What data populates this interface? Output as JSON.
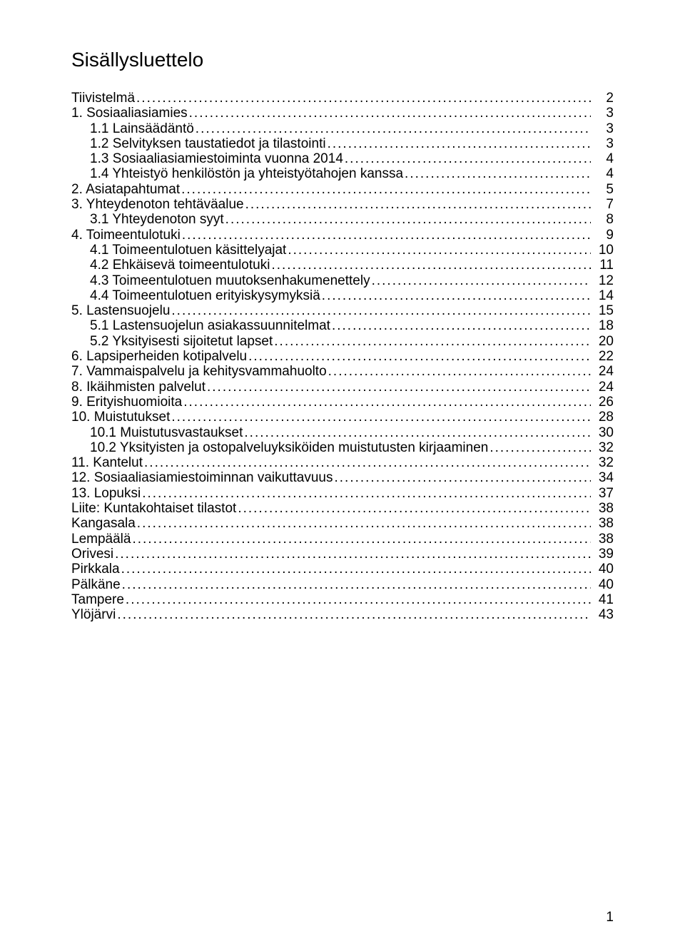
{
  "title": "Sisällysluettelo",
  "page_number": "1",
  "toc": [
    {
      "label": "Tiivistelmä",
      "page": "2",
      "indent": 0
    },
    {
      "label": "1.   Sosiaaliasiamies",
      "page": "3",
      "indent": 0
    },
    {
      "label": "1.1 Lainsäädäntö",
      "page": "3",
      "indent": 1
    },
    {
      "label": "1.2 Selvityksen taustatiedot ja tilastointi",
      "page": "3",
      "indent": 1
    },
    {
      "label": "1.3 Sosiaaliasiamiestoiminta vuonna 2014",
      "page": "4",
      "indent": 1
    },
    {
      "label": "1.4 Yhteistyö henkilöstön ja yhteistyötahojen kanssa",
      "page": "4",
      "indent": 1
    },
    {
      "label": "2.   Asiatapahtumat",
      "page": "5",
      "indent": 0
    },
    {
      "label": "3.   Yhteydenoton tehtäväalue",
      "page": "7",
      "indent": 0
    },
    {
      "label": "3.1 Yhteydenoton syyt",
      "page": "8",
      "indent": 1
    },
    {
      "label": "4.   Toimeentulotuki",
      "page": "9",
      "indent": 0
    },
    {
      "label": "4.1 Toimeentulotuen käsittelyajat",
      "page": "10",
      "indent": 1
    },
    {
      "label": "4.2 Ehkäisevä toimeentulotuki",
      "page": "11",
      "indent": 1
    },
    {
      "label": "4.3 Toimeentulotuen muutoksenhakumenettely",
      "page": "12",
      "indent": 1
    },
    {
      "label": "4.4 Toimeentulotuen erityiskysymyksiä",
      "page": "14",
      "indent": 1
    },
    {
      "label": "5.   Lastensuojelu",
      "page": "15",
      "indent": 0
    },
    {
      "label": "5.1 Lastensuojelun asiakassuunnitelmat",
      "page": "18",
      "indent": 1
    },
    {
      "label": "5.2 Yksityisesti sijoitetut lapset",
      "page": "20",
      "indent": 1
    },
    {
      "label": "6.   Lapsiperheiden kotipalvelu",
      "page": "22",
      "indent": 0
    },
    {
      "label": "7.   Vammaispalvelu ja kehitysvammahuolto",
      "page": "24",
      "indent": 0
    },
    {
      "label": "8.   Ikäihmisten palvelut",
      "page": "24",
      "indent": 0
    },
    {
      "label": "9.   Erityishuomioita",
      "page": "26",
      "indent": 0
    },
    {
      "label": "10.  Muistutukset",
      "page": "28",
      "indent": 0
    },
    {
      "label": "10.1 Muistutusvastaukset",
      "page": "30",
      "indent": 1
    },
    {
      "label": "10.2 Yksityisten ja ostopalveluyksiköiden muistutusten kirjaaminen",
      "page": "32",
      "indent": 1
    },
    {
      "label": "11.  Kantelut",
      "page": "32",
      "indent": 0
    },
    {
      "label": "12.  Sosiaaliasiamiestoiminnan vaikuttavuus",
      "page": "34",
      "indent": 0
    },
    {
      "label": "13.  Lopuksi",
      "page": "37",
      "indent": 0
    },
    {
      "label": "Liite: Kuntakohtaiset tilastot",
      "page": "38",
      "indent": 0
    },
    {
      "label": "Kangasala",
      "page": "38",
      "indent": 0
    },
    {
      "label": "Lempäälä",
      "page": "38",
      "indent": 0
    },
    {
      "label": "Orivesi",
      "page": "39",
      "indent": 0
    },
    {
      "label": "Pirkkala",
      "page": "40",
      "indent": 0
    },
    {
      "label": "Pälkäne",
      "page": "40",
      "indent": 0
    },
    {
      "label": "Tampere",
      "page": "41",
      "indent": 0
    },
    {
      "label": "Ylöjärvi",
      "page": "43",
      "indent": 0
    }
  ]
}
